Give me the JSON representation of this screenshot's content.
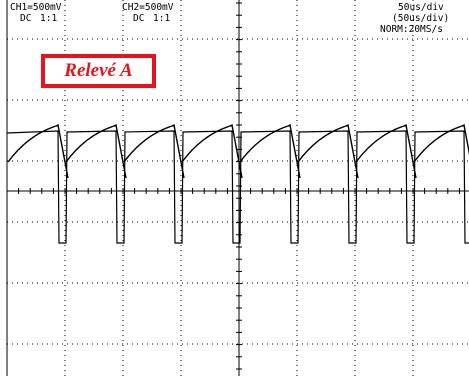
{
  "channels": [
    {
      "label": "CH1=500mV",
      "coupling": "DC",
      "probe": "1:1"
    },
    {
      "label": "CH2=500mV",
      "coupling": "DC",
      "probe": "1:1"
    }
  ],
  "timebase": {
    "main": "50us/div",
    "secondary": "(50us/div)",
    "acquisition": "NORM:20MS/s"
  },
  "annotation": {
    "text": "Relevé A",
    "color": "#e8141b"
  },
  "colors": {
    "trace": "#000000",
    "grid": "#000000",
    "background": "#ffffff"
  }
}
